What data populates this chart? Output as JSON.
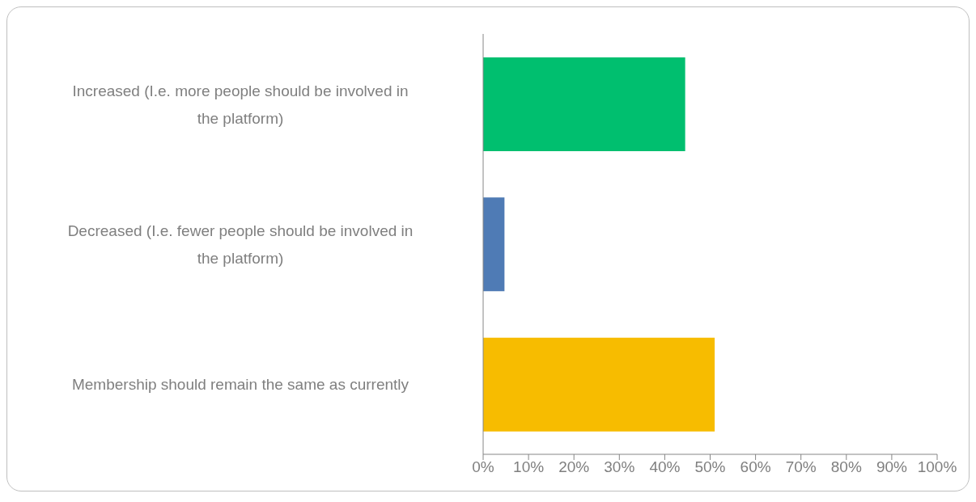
{
  "chart_data": {
    "type": "bar",
    "orientation": "horizontal",
    "categories": [
      "Increased (I.e. more people should be involved in the platform)",
      "Decreased (I.e. fewer people should be involved in the platform)",
      "Membership should remain the same as currently"
    ],
    "values": [
      44.5,
      4.7,
      51
    ],
    "colors": [
      "#00bf6f",
      "#4f7bb5",
      "#f7bc00"
    ],
    "xlim": [
      0,
      100
    ],
    "xticks": [
      {
        "value": 0,
        "label": "0%"
      },
      {
        "value": 10,
        "label": "10%"
      },
      {
        "value": 20,
        "label": "20%"
      },
      {
        "value": 30,
        "label": "30%"
      },
      {
        "value": 40,
        "label": "40%"
      },
      {
        "value": 50,
        "label": "50%"
      },
      {
        "value": 60,
        "label": "60%"
      },
      {
        "value": 70,
        "label": "70%"
      },
      {
        "value": 80,
        "label": "80%"
      },
      {
        "value": 90,
        "label": "90%"
      },
      {
        "value": 100,
        "label": "100%"
      }
    ],
    "grid": false,
    "legend": false
  }
}
